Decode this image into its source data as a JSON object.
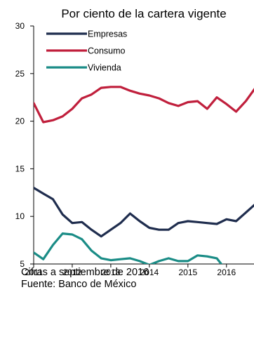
{
  "chart_data": {
    "type": "line",
    "title": "Por ciento de la cartera vigente",
    "xlabel": "",
    "ylabel": "",
    "xlim": [
      2011.0,
      2016.75
    ],
    "ylim": [
      5,
      30
    ],
    "y_ticks": [
      "5",
      "10",
      "15",
      "20",
      "25",
      "30"
    ],
    "x_ticks": [
      {
        "label": "2011",
        "value": 2011.0
      },
      {
        "label": "2012",
        "value": 2012.0
      },
      {
        "label": "2013",
        "value": 2013.0
      },
      {
        "label": "2014",
        "value": 2014.0
      },
      {
        "label": "2015",
        "value": 2015.0
      },
      {
        "label": "2016",
        "value": 2016.0
      }
    ],
    "grid": false,
    "legend_position": "top-left",
    "series": [
      {
        "name": "Empresas",
        "color": "#1f2d4e",
        "x": [
          2011.0,
          2011.25,
          2011.5,
          2011.75,
          2012.0,
          2012.25,
          2012.5,
          2012.75,
          2013.0,
          2013.25,
          2013.5,
          2013.75,
          2014.0,
          2014.25,
          2014.5,
          2014.75,
          2015.0,
          2015.25,
          2015.5,
          2015.75,
          2016.0,
          2016.25,
          2016.5,
          2016.75
        ],
        "values": [
          13.0,
          12.4,
          11.8,
          10.2,
          9.3,
          9.4,
          8.6,
          7.9,
          8.6,
          9.3,
          10.3,
          9.5,
          8.8,
          8.6,
          8.6,
          9.3,
          9.5,
          9.4,
          9.3,
          9.2,
          9.7,
          9.5,
          10.4,
          11.3
        ]
      },
      {
        "name": "Consumo",
        "color": "#c01f3c",
        "x": [
          2011.0,
          2011.25,
          2011.5,
          2011.75,
          2012.0,
          2012.25,
          2012.5,
          2012.75,
          2013.0,
          2013.25,
          2013.5,
          2013.75,
          2014.0,
          2014.25,
          2014.5,
          2014.75,
          2015.0,
          2015.25,
          2015.5,
          2015.75,
          2016.0,
          2016.25,
          2016.5,
          2016.75
        ],
        "values": [
          21.9,
          19.9,
          20.1,
          20.5,
          21.3,
          22.4,
          22.8,
          23.5,
          23.6,
          23.6,
          23.2,
          22.9,
          22.7,
          22.4,
          21.9,
          21.6,
          22.0,
          22.1,
          21.3,
          22.5,
          21.8,
          21.0,
          22.1,
          23.5
        ]
      },
      {
        "name": "Vivienda",
        "color": "#1a8c86",
        "x": [
          2011.0,
          2011.25,
          2011.5,
          2011.75,
          2012.0,
          2012.25,
          2012.5,
          2012.75,
          2013.0,
          2013.25,
          2013.5,
          2013.75,
          2014.0,
          2014.25,
          2014.5,
          2014.75,
          2015.0,
          2015.25,
          2015.5,
          2015.75,
          2016.0
        ],
        "values": [
          6.2,
          5.5,
          7.0,
          8.2,
          8.1,
          7.6,
          6.4,
          5.6,
          5.4,
          5.5,
          5.6,
          5.3,
          4.9,
          5.3,
          5.6,
          5.3,
          5.3,
          5.9,
          5.8,
          5.6,
          4.3
        ]
      }
    ]
  },
  "notes": {
    "line1": "Cifras a septiembre de 2016",
    "line2": "Fuente: Banco de México"
  }
}
